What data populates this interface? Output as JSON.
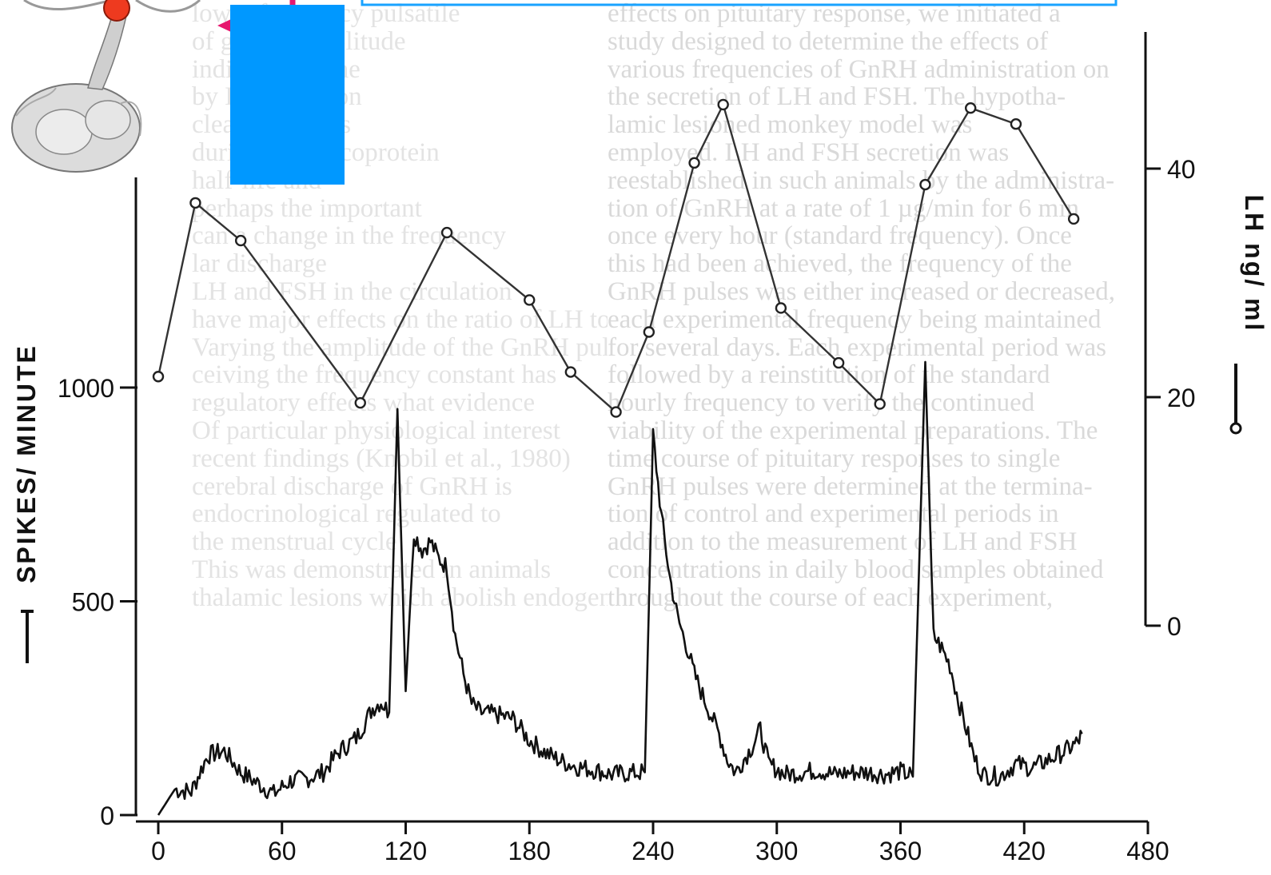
{
  "background_text": {
    "left_lines": [
      "lower frequency pulsatile",
      "of greater amplitude",
      "indicate that the",
      "by LH secretion",
      "clearance. This",
      "during the glycoprotein",
      "half-life and",
      "perhaps the important",
      "can a change in the frequency",
      "lar discharge",
      "LH and FSH in the circulation",
      "have major effects on the ratio of LH to FSH",
      "Varying the amplitude of the GnRH pulses",
      "ceiving the frequency constant has",
      "regulatory effects what evidence",
      "Of particular physiological interest",
      "recent findings (Knobil et al., 1980)",
      "cerebral discharge of GnRH is",
      "endocrinological regulated to",
      "the menstrual cycle",
      "This was demonstrated in animals",
      "thalamic lesions which abolish endogenous"
    ],
    "right_lines": [
      "effects on pituitary response, we initiated a",
      "study designed to determine the effects of",
      "various frequencies of GnRH administration on",
      "the secretion of LH and FSH. The hypotha-",
      "lamic lesioned monkey model was",
      "employed. LH and FSH secretion was",
      "reestablished in such animals by the administra-",
      "tion of GnRH at a rate of 1 µg/min for 6 min",
      "once every hour (standard frequency). Once",
      "this had been achieved, the frequency of the",
      "GnRH pulses was either increased or decreased,",
      "each experimental frequency being maintained",
      "for several days. Each experimental period was",
      "followed by a reinstitution of the standard",
      "hourly frequency to verify the continued",
      "viability of the experimental preparations. The",
      "time course of pituitary responses to single",
      "GnRH pulses were determined at the termina-",
      "tion of control and experimental periods in",
      "addition to the measurement of LH and FSH",
      "concentrations in daily blood samples obtained",
      "throughout the course of each experiment,"
    ]
  },
  "chart_data": {
    "type": "line",
    "xlabel": "",
    "x_ticks": [
      "0",
      "60",
      "120",
      "180",
      "240",
      "300",
      "360",
      "420",
      "480"
    ],
    "xlim": [
      0,
      480
    ],
    "left_axis": {
      "label": "SPIKES/ MINUTE",
      "ticks": [
        "0",
        "500",
        "1000"
      ],
      "ylim": [
        0,
        1000
      ]
    },
    "right_axis": {
      "label": "LH ng/ ml",
      "ticks": [
        "0",
        "20",
        "40"
      ],
      "ylim": [
        0,
        40
      ]
    },
    "series": [
      {
        "name": "LH ng/ ml",
        "axis": "right",
        "marker": "open-circle",
        "points": [
          {
            "x": 0,
            "y": 21.8
          },
          {
            "x": 18,
            "y": 37.0
          },
          {
            "x": 40,
            "y": 33.7
          },
          {
            "x": 98,
            "y": 19.5
          },
          {
            "x": 140,
            "y": 34.4
          },
          {
            "x": 180,
            "y": 28.5
          },
          {
            "x": 200,
            "y": 22.2
          },
          {
            "x": 222,
            "y": 18.7
          },
          {
            "x": 238,
            "y": 25.7
          },
          {
            "x": 260,
            "y": 40.5
          },
          {
            "x": 274,
            "y": 45.6
          },
          {
            "x": 302,
            "y": 27.8
          },
          {
            "x": 330,
            "y": 23.0
          },
          {
            "x": 350,
            "y": 19.4
          },
          {
            "x": 372,
            "y": 38.6
          },
          {
            "x": 394,
            "y": 45.3
          },
          {
            "x": 416,
            "y": 43.9
          },
          {
            "x": 444,
            "y": 35.6
          }
        ]
      },
      {
        "name": "SPIKES/ MINUTE",
        "axis": "left",
        "marker": "none",
        "points": [
          {
            "x": 0,
            "y": 0
          },
          {
            "x": 8,
            "y": 60
          },
          {
            "x": 16,
            "y": 55
          },
          {
            "x": 24,
            "y": 140
          },
          {
            "x": 32,
            "y": 150
          },
          {
            "x": 40,
            "y": 100
          },
          {
            "x": 48,
            "y": 75
          },
          {
            "x": 56,
            "y": 50
          },
          {
            "x": 64,
            "y": 80
          },
          {
            "x": 72,
            "y": 85
          },
          {
            "x": 80,
            "y": 100
          },
          {
            "x": 88,
            "y": 150
          },
          {
            "x": 96,
            "y": 180
          },
          {
            "x": 104,
            "y": 250
          },
          {
            "x": 108,
            "y": 265
          },
          {
            "x": 112,
            "y": 240
          },
          {
            "x": 116,
            "y": 950
          },
          {
            "x": 120,
            "y": 290
          },
          {
            "x": 124,
            "y": 660
          },
          {
            "x": 128,
            "y": 620
          },
          {
            "x": 132,
            "y": 640
          },
          {
            "x": 136,
            "y": 600
          },
          {
            "x": 140,
            "y": 580
          },
          {
            "x": 144,
            "y": 420
          },
          {
            "x": 148,
            "y": 330
          },
          {
            "x": 152,
            "y": 260
          },
          {
            "x": 156,
            "y": 240
          },
          {
            "x": 164,
            "y": 235
          },
          {
            "x": 172,
            "y": 225
          },
          {
            "x": 180,
            "y": 175
          },
          {
            "x": 188,
            "y": 145
          },
          {
            "x": 196,
            "y": 125
          },
          {
            "x": 204,
            "y": 112
          },
          {
            "x": 212,
            "y": 105
          },
          {
            "x": 220,
            "y": 95
          },
          {
            "x": 228,
            "y": 98
          },
          {
            "x": 236,
            "y": 100
          },
          {
            "x": 240,
            "y": 890
          },
          {
            "x": 244,
            "y": 700
          },
          {
            "x": 248,
            "y": 560
          },
          {
            "x": 252,
            "y": 460
          },
          {
            "x": 256,
            "y": 400
          },
          {
            "x": 260,
            "y": 330
          },
          {
            "x": 264,
            "y": 280
          },
          {
            "x": 268,
            "y": 235
          },
          {
            "x": 272,
            "y": 190
          },
          {
            "x": 276,
            "y": 130
          },
          {
            "x": 280,
            "y": 100
          },
          {
            "x": 288,
            "y": 160
          },
          {
            "x": 292,
            "y": 200
          },
          {
            "x": 296,
            "y": 120
          },
          {
            "x": 304,
            "y": 95
          },
          {
            "x": 312,
            "y": 100
          },
          {
            "x": 320,
            "y": 105
          },
          {
            "x": 328,
            "y": 95
          },
          {
            "x": 336,
            "y": 100
          },
          {
            "x": 344,
            "y": 100
          },
          {
            "x": 352,
            "y": 95
          },
          {
            "x": 360,
            "y": 102
          },
          {
            "x": 366,
            "y": 90
          },
          {
            "x": 372,
            "y": 1060
          },
          {
            "x": 376,
            "y": 420
          },
          {
            "x": 380,
            "y": 390
          },
          {
            "x": 384,
            "y": 350
          },
          {
            "x": 388,
            "y": 270
          },
          {
            "x": 392,
            "y": 200
          },
          {
            "x": 396,
            "y": 130
          },
          {
            "x": 400,
            "y": 95
          },
          {
            "x": 408,
            "y": 90
          },
          {
            "x": 416,
            "y": 120
          },
          {
            "x": 424,
            "y": 110
          },
          {
            "x": 432,
            "y": 130
          },
          {
            "x": 440,
            "y": 150
          },
          {
            "x": 446,
            "y": 170
          },
          {
            "x": 448,
            "y": 190
          }
        ]
      }
    ],
    "grid": false,
    "legend": "right-axis-side"
  }
}
